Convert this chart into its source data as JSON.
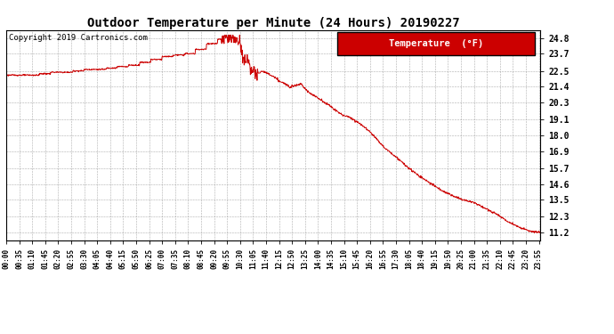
{
  "title": "Outdoor Temperature per Minute (24 Hours) 20190227",
  "copyright_text": "Copyright 2019 Cartronics.com",
  "legend_label": "Temperature  (°F)",
  "line_color": "#cc0000",
  "background_color": "#ffffff",
  "grid_color": "#999999",
  "yticks": [
    11.2,
    12.3,
    13.5,
    14.6,
    15.7,
    16.9,
    18.0,
    19.1,
    20.3,
    21.4,
    22.5,
    23.7,
    24.8
  ],
  "ylim": [
    10.65,
    25.35
  ],
  "total_minutes": 1440,
  "legend_bg": "#cc0000",
  "legend_text_color": "#ffffff"
}
